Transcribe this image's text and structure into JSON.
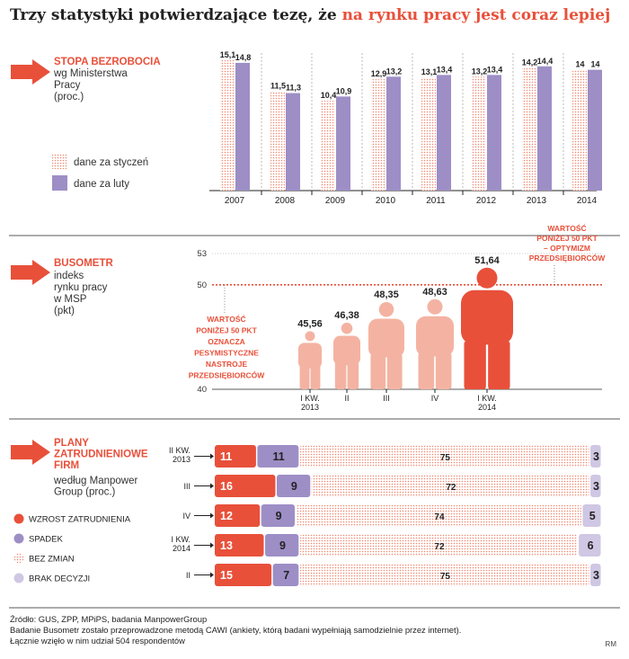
{
  "title": {
    "main": "Trzy statystyki potwierdzające tezę, że ",
    "highlight": "na rynku pracy jest coraz lepiej"
  },
  "colors": {
    "accent": "#e8503a",
    "purple": "#9d8ec6",
    "light_purple": "#cfc7e3",
    "salmon": "#f4b3a2",
    "dotted": "#f08a72"
  },
  "section1": {
    "heading": "STOPA BEZROBOCIA",
    "sub": [
      "wg Ministerstwa",
      "Pracy",
      "(proc.)"
    ],
    "legend_january": "dane za styczeń",
    "legend_february": "dane za luty"
  },
  "section2": {
    "heading": "BUSOMETR",
    "sub": [
      "indeks",
      "rynku pracy",
      "w MSP",
      "(pkt)"
    ],
    "note_left": [
      "WARTOŚĆ",
      "PONIŻEJ 50 PKT",
      "OZNACZA",
      "PESYMISTYCZNE",
      "NASTROJE",
      "PRZEDSIĘBIORCÓW"
    ],
    "note_right": [
      "WARTOŚĆ",
      "PONIŻEJ 50 PKT",
      "– OPTYMIZM",
      "PRZEDSIĘBIORCÓW"
    ]
  },
  "section3": {
    "heading": [
      "PLANY",
      "ZATRUDNIENIOWE",
      "FIRM"
    ],
    "sub": [
      "według Manpower",
      "Group (proc.)"
    ],
    "legend": [
      "WZROST ZATRUDNIENIA",
      "SPADEK",
      "BEZ ZMIAN",
      "BRAK DECYZJI"
    ]
  },
  "source": {
    "line1": "Źródło: GUS, ZPP, MPiPS, badania ManpowerGroup",
    "line2": "Badanie Busometr zostało przeprowadzone metodą CAWI (ankiety, którą badani wypełniają samodzielnie przez internet).",
    "line3": "Łącznie wzięło w nim udział 504 respondentów",
    "signature": "RM"
  },
  "chart_data": [
    {
      "type": "bar",
      "title": "STOPA BEZROBOCIA wg Ministerstwa Pracy (proc.)",
      "categories": [
        "2007",
        "2008",
        "2009",
        "2010",
        "2011",
        "2012",
        "2013",
        "2014"
      ],
      "series": [
        {
          "name": "dane za styczeń",
          "values": [
            15.1,
            11.5,
            10.4,
            12.9,
            13.1,
            13.2,
            14.2,
            14.0
          ],
          "labels": [
            "15,1",
            "11,5",
            "10,4",
            "12,9",
            "13,1",
            "13,2",
            "14,2",
            "14"
          ]
        },
        {
          "name": "dane za luty",
          "values": [
            14.8,
            11.3,
            10.9,
            13.2,
            13.4,
            13.4,
            14.4,
            14.0
          ],
          "labels": [
            "14,8",
            "11,3",
            "10,9",
            "13,2",
            "13,4",
            "13,4",
            "14,4",
            "14"
          ]
        }
      ],
      "ylim": [
        0,
        16
      ]
    },
    {
      "type": "bar",
      "title": "BUSOMETR indeks rynku pracy w MSP (pkt)",
      "categories": [
        "I KW. 2013",
        "II",
        "III",
        "IV",
        "I KW. 2014"
      ],
      "category_lines": [
        [
          "I KW.",
          "2013"
        ],
        [
          "II"
        ],
        [
          "III"
        ],
        [
          "IV"
        ],
        [
          "I KW.",
          "2014"
        ]
      ],
      "values": [
        45.56,
        46.38,
        48.35,
        48.63,
        51.64
      ],
      "labels": [
        "45,56",
        "46,38",
        "48,35",
        "48,63",
        "51,64"
      ],
      "yticks": [
        {
          "value": 53,
          "label": "53"
        },
        {
          "value": 50,
          "label": "50"
        },
        {
          "value": 40,
          "label": "40"
        }
      ],
      "ylim": [
        40,
        53
      ],
      "threshold": 50
    },
    {
      "type": "bar",
      "stacked": true,
      "horizontal": true,
      "title": "PLANY ZATRUDNIENIOWE FIRM według Manpower Group (proc.)",
      "categories": [
        "II KW. 2013",
        "III",
        "IV",
        "I KW. 2014",
        "II"
      ],
      "category_lines": [
        [
          "II KW.",
          "2013"
        ],
        [
          "III"
        ],
        [
          "IV"
        ],
        [
          "I KW.",
          "2014"
        ],
        [
          "II"
        ]
      ],
      "series": [
        {
          "name": "WZROST ZATRUDNIENIA",
          "values": [
            11,
            16,
            12,
            13,
            15
          ]
        },
        {
          "name": "SPADEK",
          "values": [
            11,
            9,
            9,
            9,
            7
          ]
        },
        {
          "name": "BEZ ZMIAN",
          "values": [
            75,
            72,
            74,
            72,
            75
          ]
        },
        {
          "name": "BRAK DECYZJI",
          "values": [
            3,
            3,
            5,
            6,
            3
          ]
        }
      ]
    }
  ]
}
